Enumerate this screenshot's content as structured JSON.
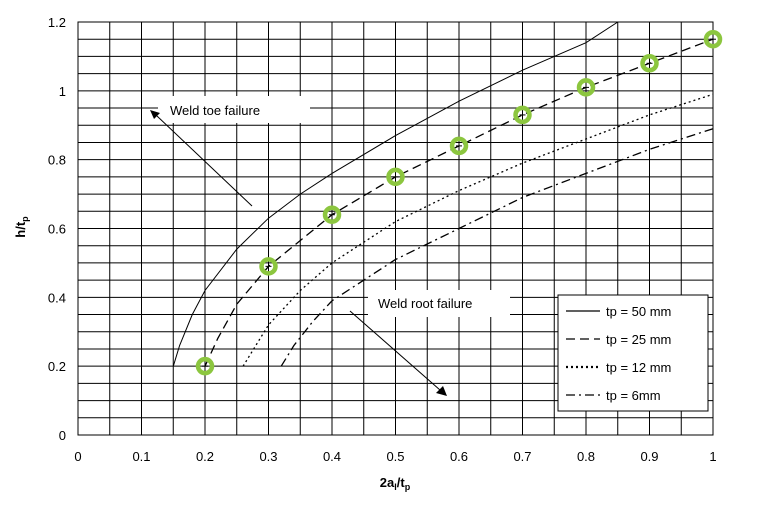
{
  "chart_data": {
    "type": "line",
    "xlabel": {
      "main": "2a",
      "sub1": "l",
      "mid": "/t",
      "sub2": "p"
    },
    "ylabel": {
      "main": "h/t",
      "sub": "p"
    },
    "xlim": [
      0,
      1
    ],
    "ylim": [
      0,
      1.2
    ],
    "x_ticks": [
      "0",
      "0.1",
      "0.2",
      "0.3",
      "0.4",
      "0.5",
      "0.6",
      "0.7",
      "0.8",
      "0.9",
      "1"
    ],
    "y_ticks": [
      "0",
      "0.2",
      "0.4",
      "0.6",
      "0.8",
      "1",
      "1.2"
    ],
    "grid": true,
    "legend_position": "bottom-right",
    "series": [
      {
        "name": "tp = 50 mm",
        "dash": "solid",
        "points": [
          [
            0.15,
            0.2
          ],
          [
            0.16,
            0.26
          ],
          [
            0.18,
            0.35
          ],
          [
            0.2,
            0.42
          ],
          [
            0.25,
            0.54
          ],
          [
            0.3,
            0.63
          ],
          [
            0.35,
            0.7
          ],
          [
            0.4,
            0.76
          ],
          [
            0.5,
            0.87
          ],
          [
            0.6,
            0.97
          ],
          [
            0.7,
            1.06
          ],
          [
            0.8,
            1.14
          ],
          [
            0.85,
            1.2
          ]
        ]
      },
      {
        "name": "tp = 25 mm",
        "dash": "dashed",
        "points": [
          [
            0.2,
            0.2
          ],
          [
            0.22,
            0.28
          ],
          [
            0.25,
            0.38
          ],
          [
            0.3,
            0.49
          ],
          [
            0.4,
            0.64
          ],
          [
            0.5,
            0.75
          ],
          [
            0.6,
            0.84
          ],
          [
            0.7,
            0.93
          ],
          [
            0.8,
            1.01
          ],
          [
            0.9,
            1.08
          ],
          [
            1.0,
            1.15
          ]
        ]
      },
      {
        "name": "tp = 12 mm",
        "dash": "dotted",
        "points": [
          [
            0.26,
            0.2
          ],
          [
            0.28,
            0.26
          ],
          [
            0.3,
            0.32
          ],
          [
            0.35,
            0.42
          ],
          [
            0.4,
            0.5
          ],
          [
            0.5,
            0.62
          ],
          [
            0.6,
            0.71
          ],
          [
            0.7,
            0.79
          ],
          [
            0.8,
            0.86
          ],
          [
            0.9,
            0.93
          ],
          [
            1.0,
            0.99
          ]
        ]
      },
      {
        "name": "tp = 6mm",
        "dash": "dashdot",
        "points": [
          [
            0.32,
            0.2
          ],
          [
            0.34,
            0.26
          ],
          [
            0.37,
            0.33
          ],
          [
            0.4,
            0.39
          ],
          [
            0.5,
            0.51
          ],
          [
            0.6,
            0.6
          ],
          [
            0.7,
            0.69
          ],
          [
            0.8,
            0.76
          ],
          [
            0.9,
            0.83
          ],
          [
            1.0,
            0.89
          ]
        ]
      }
    ],
    "markers": {
      "color": "#8cc63f",
      "points": [
        [
          0.2,
          0.2
        ],
        [
          0.3,
          0.49
        ],
        [
          0.4,
          0.64
        ],
        [
          0.5,
          0.75
        ],
        [
          0.6,
          0.84
        ],
        [
          0.7,
          0.93
        ],
        [
          0.8,
          1.01
        ],
        [
          0.9,
          1.08
        ],
        [
          1.0,
          1.15
        ]
      ]
    },
    "annotations": {
      "toe": {
        "text": "Weld toe failure"
      },
      "root": {
        "text": "Weld root failure"
      }
    }
  }
}
